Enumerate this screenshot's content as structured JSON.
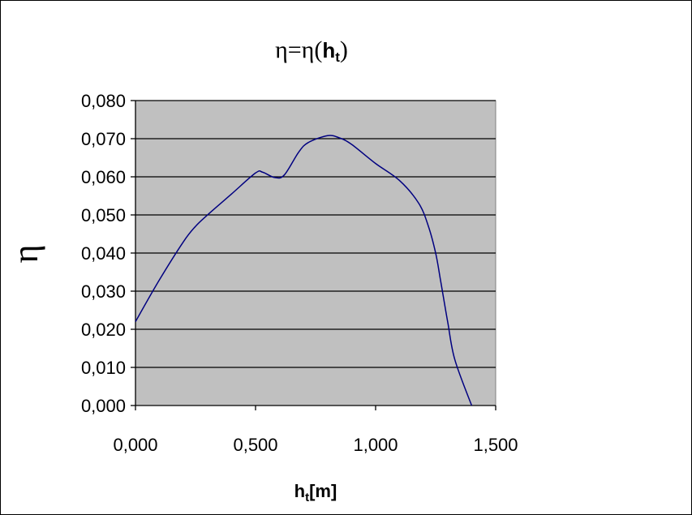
{
  "chart_data": {
    "type": "line",
    "title_main": "η=η(",
    "title_bold": "h",
    "title_sub": "t",
    "title_close": ")",
    "xlabel_main": "h",
    "xlabel_sub": "t",
    "xlabel_unit": "[m]",
    "ylabel": "η",
    "xlim": [
      0,
      1.5
    ],
    "ylim": [
      0,
      0.08
    ],
    "x_ticks": [
      0,
      0.5,
      1.0,
      1.5
    ],
    "x_tick_labels": [
      "0,000",
      "0,500",
      "1,000",
      "1,500"
    ],
    "y_ticks": [
      0,
      0.01,
      0.02,
      0.03,
      0.04,
      0.05,
      0.06,
      0.07,
      0.08
    ],
    "y_tick_labels": [
      "0,000",
      "0,010",
      "0,020",
      "0,030",
      "0,040",
      "0,050",
      "0,060",
      "0,070",
      "0,080"
    ],
    "grid": "horizontal",
    "plot_background": "#c0c0c0",
    "line_color": "#000080",
    "series": [
      {
        "x": [
          0.0,
          0.1,
          0.2,
          0.25,
          0.3,
          0.4,
          0.5,
          0.53,
          0.58,
          0.62,
          0.68,
          0.72,
          0.8,
          0.85,
          0.9,
          1.0,
          1.1,
          1.18,
          1.22,
          1.25,
          1.27,
          1.3,
          1.33,
          1.4
        ],
        "values": [
          0.022,
          0.033,
          0.043,
          0.047,
          0.05,
          0.0555,
          0.061,
          0.0612,
          0.0598,
          0.0605,
          0.0665,
          0.069,
          0.0708,
          0.0702,
          0.0685,
          0.0635,
          0.059,
          0.053,
          0.047,
          0.04,
          0.033,
          0.022,
          0.012,
          0.0
        ]
      }
    ]
  }
}
